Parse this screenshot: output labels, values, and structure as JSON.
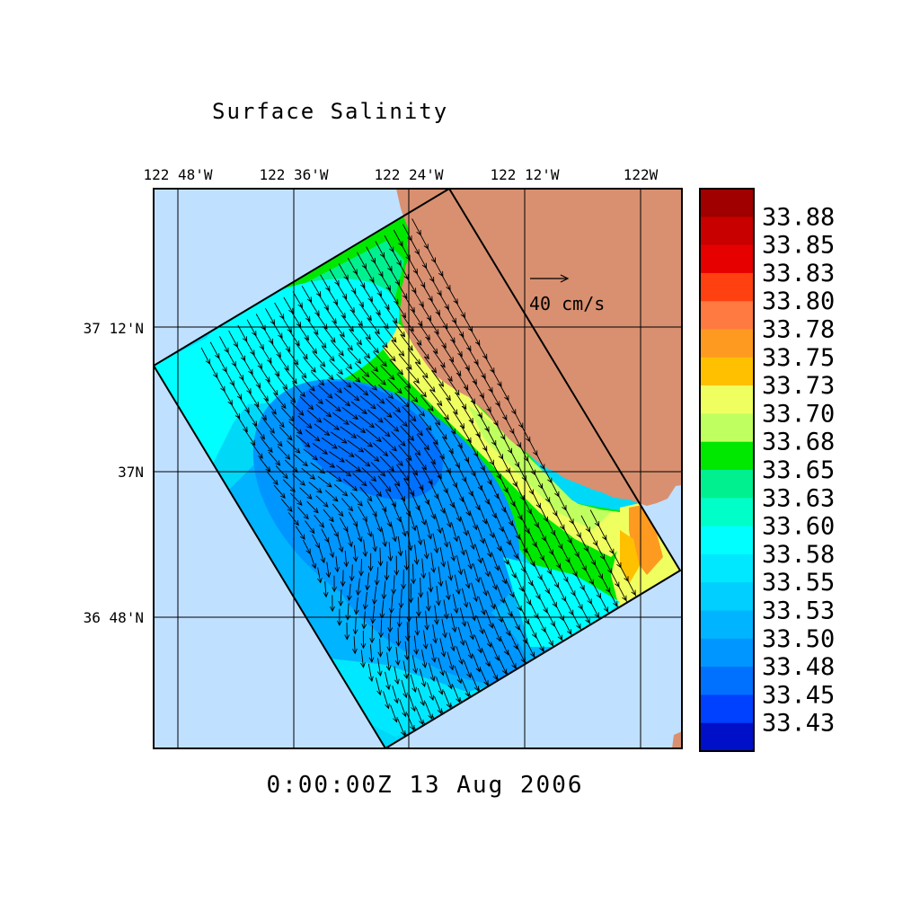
{
  "title": "Surface Salinity",
  "timestamp": "0:00:00Z  13 Aug 2006",
  "lon_ticks": [
    "122 48'W",
    "122 36'W",
    "122 24'W",
    "122 12'W",
    "122W"
  ],
  "lat_ticks": [
    "37 12'N",
    "37N",
    "36 48'N"
  ],
  "reference_vector_label": "40 cm/s",
  "colorbar": {
    "labels": [
      "33.88",
      "33.85",
      "33.83",
      "33.80",
      "33.78",
      "33.75",
      "33.73",
      "33.70",
      "33.68",
      "33.65",
      "33.63",
      "33.60",
      "33.58",
      "33.55",
      "33.53",
      "33.50",
      "33.48",
      "33.45",
      "33.43"
    ],
    "colors": [
      "#a00000",
      "#c80000",
      "#e60000",
      "#ff4010",
      "#ff7a40",
      "#ff9a20",
      "#ffc000",
      "#f0ff60",
      "#c0ff60",
      "#00e800",
      "#00f090",
      "#00ffc8",
      "#00ffff",
      "#00e8ff",
      "#00cfff",
      "#00b4ff",
      "#0096ff",
      "#0070ff",
      "#0040ff",
      "#0010c8"
    ]
  },
  "colors": {
    "ocean_outside": "#c0e0ff",
    "land": "#d99070",
    "domain_fill": "#00d8f8"
  }
}
